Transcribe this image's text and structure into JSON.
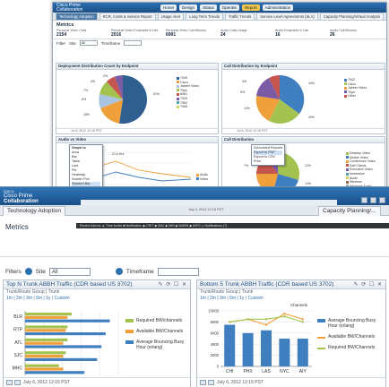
{
  "back": {
    "logo": {
      "line1": "cisco",
      "line2": "Cisco Prime",
      "line3": "Collaboration"
    },
    "menu": [
      "Home",
      "Design",
      "Status",
      "Operate",
      "Report",
      "Administration"
    ],
    "menu_active": "Report",
    "tabs": [
      "Technology Adoption",
      "RCR, Costs & Service Report",
      "Usage Alert",
      "Long Term Trends",
      "Traffic Trends",
      "Service Level Agreements (SLA)",
      "Capacity Planning/Virtual Analysis"
    ],
    "metrics_title": "Metrics",
    "metrics": [
      {
        "label": "Personal Video Calls",
        "value": "2154"
      },
      {
        "label": "Personal Video Endpoints in Use",
        "value": "2016"
      },
      {
        "label": "Personal Video Call Minutes",
        "value": "6991"
      },
      {
        "label": "Audio Calls Usage",
        "value": "24"
      },
      {
        "label": "Audio Endpoints in Use",
        "value": "16"
      },
      {
        "label": "Audio Call Minutes",
        "value": "26"
      }
    ],
    "filter": {
      "label": "Filter",
      "site_label": "Site",
      "site_value": "All",
      "timeframe_label": "Timeframe"
    },
    "panels": {
      "p1_title": "Deployment Distribution Count by Endpoint",
      "p2_title": "Call Distribution by Endpoint",
      "p3_title": "Audio vs Video",
      "p4_title": "Call Distribution",
      "footer": "Jul 6, 2012 12:15 PST"
    },
    "p1_legend": [
      "7945",
      "Cisco",
      "Jabber Video",
      "Trips",
      "6961",
      "7925",
      "7962",
      "7965"
    ],
    "p1_labels": [
      "51%",
      "18%",
      "6%",
      "7%",
      "4%",
      "2%"
    ],
    "p2_legend": [
      "7942",
      "Cisco",
      "Jabber Video",
      "Trips",
      "Other"
    ],
    "p2_labels": [
      "3%",
      "5%",
      "14%",
      "20%",
      "44%"
    ],
    "p4_legend": [
      "Desktop Video",
      "Mobile Video",
      "Conference Video",
      "Soft Clients",
      "Executive Video",
      "Immersive",
      "Audio",
      "Wireless",
      "Windows Audio"
    ],
    "p4_labels": [
      "7%",
      "12%",
      "14%"
    ],
    "p3_legend": [
      "Audio",
      "Video"
    ],
    "p3_dates": [
      "6/7/2014",
      "6/7/2014",
      "6/7/2014",
      "7/7/2014"
    ],
    "context_menu": [
      "Graph to",
      "Area",
      "Bar",
      "Table",
      "Line",
      "Pie",
      "Heatmap",
      "Scatter Plot",
      "Stacked Bar"
    ],
    "context_menu_checks": [
      "Show All Patterns",
      "Emphasize Median"
    ],
    "context_menu_footer": "Show Information",
    "p4_menu": [
      "Scheduled Reports",
      "Export to PDF",
      "Export to CSV",
      "Print"
    ],
    "p3_value_label": "21.6 Hrs"
  },
  "front": {
    "logo": {
      "line1": "cisco",
      "line2": "Cisco Prime",
      "line3": "Collaboration"
    },
    "tab_left": "Technology Adoption",
    "tab_right": "Capacity Planning/...",
    "tab_date": "July 4, 2012 12:18 PST",
    "notification_bar": "Recent Alarms   ▲  Time Active   ■ Notification   ◆ CRIT  ◆ MAJ  ◆ MIN  ◆ WARN  ◆ INFO  ◇ Notifications (7)",
    "metrics_title": "Metrics",
    "filter": {
      "label": "Filters",
      "site_label": "Site",
      "site_value": "All",
      "timeframe_label": "Timeframe"
    },
    "panel_left": {
      "title": "Top N Trunk ABBH Traffic  (CDR based US 3702)",
      "subtitle": "Trunk/Route Group  |  Trunk",
      "ranges": "1m  |  2m  |  3m  |  6m  |  1y  |  Custom",
      "footer": "July 6, 2012 12:15 PST",
      "legend": [
        "Required BW/channels",
        "Available BW/Channels",
        "Average Bouncing Busy Hour (erlang)"
      ]
    },
    "panel_right": {
      "title": "Bottom 5 Trunk ABBH Traffic  (CDR based US 3702)",
      "subtitle": "Trunk/Route Group  |  Trunk",
      "ranges": "1m  |  2m  |  3m  |  6m  |  1y  |  Custom",
      "footer": "July 6, 2012 12:15 PST",
      "y_axis_title": "Channels",
      "legend": [
        "Average Bouncing Busy Hour (erlang)",
        "Available BW/Channels",
        "Required BW/Channels"
      ]
    }
  },
  "colors": {
    "header_blue": "#2a6fb4",
    "series_blue": "#3f7fbf",
    "series_orange": "#f0a03a",
    "series_green": "#a3c24f",
    "active_menu": "#f7c948"
  },
  "chart_data": [
    {
      "type": "bar",
      "orientation": "horizontal",
      "categories": [
        "BLR",
        "RTP",
        "ATL",
        "SJC",
        "MHC"
      ],
      "series": [
        {
          "name": "Required BW/channels",
          "values": [
            55,
            50,
            50,
            48,
            40
          ]
        },
        {
          "name": "Available BW/Channels",
          "values": [
            50,
            48,
            45,
            45,
            45
          ]
        },
        {
          "name": "Average Bouncing Busy Hour (erlang)",
          "values": [
            100,
            95,
            90,
            85,
            70
          ]
        }
      ],
      "grid": true,
      "legend_position": "right"
    },
    {
      "type": "bar",
      "categories": [
        "CHI",
        "PHX",
        "LAS",
        "NYC",
        "AIY"
      ],
      "series": [
        {
          "name": "Average Bouncing Busy Hour (erlang)",
          "values": [
            7500,
            6000,
            6500,
            5000,
            5000
          ]
        },
        {
          "name": "Available BW/Channels",
          "values": [
            8000,
            8500,
            7500,
            9500,
            8500
          ]
        },
        {
          "name": "Required BW/Channels",
          "values": [
            8000,
            8500,
            8500,
            9000,
            8000
          ]
        }
      ],
      "ylabel": "Channels",
      "yticks": [
        0,
        2000,
        4000,
        6000,
        8000,
        10000
      ],
      "ylim": [
        0,
        10000
      ],
      "grid": true,
      "legend_position": "right"
    }
  ]
}
